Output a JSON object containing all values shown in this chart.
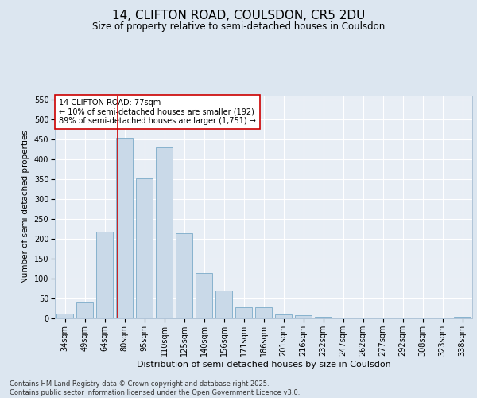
{
  "title1": "14, CLIFTON ROAD, COULSDON, CR5 2DU",
  "title2": "Size of property relative to semi-detached houses in Coulsdon",
  "xlabel": "Distribution of semi-detached houses by size in Coulsdon",
  "ylabel": "Number of semi-detached properties",
  "categories": [
    "34sqm",
    "49sqm",
    "64sqm",
    "80sqm",
    "95sqm",
    "110sqm",
    "125sqm",
    "140sqm",
    "156sqm",
    "171sqm",
    "186sqm",
    "201sqm",
    "216sqm",
    "232sqm",
    "247sqm",
    "262sqm",
    "277sqm",
    "292sqm",
    "308sqm",
    "323sqm",
    "338sqm"
  ],
  "values": [
    12,
    40,
    218,
    455,
    353,
    430,
    215,
    115,
    70,
    28,
    28,
    10,
    8,
    5,
    3,
    2,
    2,
    2,
    2,
    2,
    5
  ],
  "bar_color": "#c9d9e8",
  "bar_edge_color": "#7aaac8",
  "vline_color": "#cc0000",
  "vline_x": 2.65,
  "annotation_text": "14 CLIFTON ROAD: 77sqm\n← 10% of semi-detached houses are smaller (192)\n89% of semi-detached houses are larger (1,751) →",
  "annotation_box_edge": "#cc0000",
  "ylim": [
    0,
    560
  ],
  "yticks": [
    0,
    50,
    100,
    150,
    200,
    250,
    300,
    350,
    400,
    450,
    500,
    550
  ],
  "background_color": "#dce6f0",
  "plot_bg_color": "#e8eef5",
  "grid_color": "#ffffff",
  "footer": "Contains HM Land Registry data © Crown copyright and database right 2025.\nContains public sector information licensed under the Open Government Licence v3.0.",
  "title1_fontsize": 11,
  "title2_fontsize": 8.5,
  "xlabel_fontsize": 8,
  "ylabel_fontsize": 7.5,
  "tick_fontsize": 7,
  "annotation_fontsize": 7,
  "footer_fontsize": 6
}
